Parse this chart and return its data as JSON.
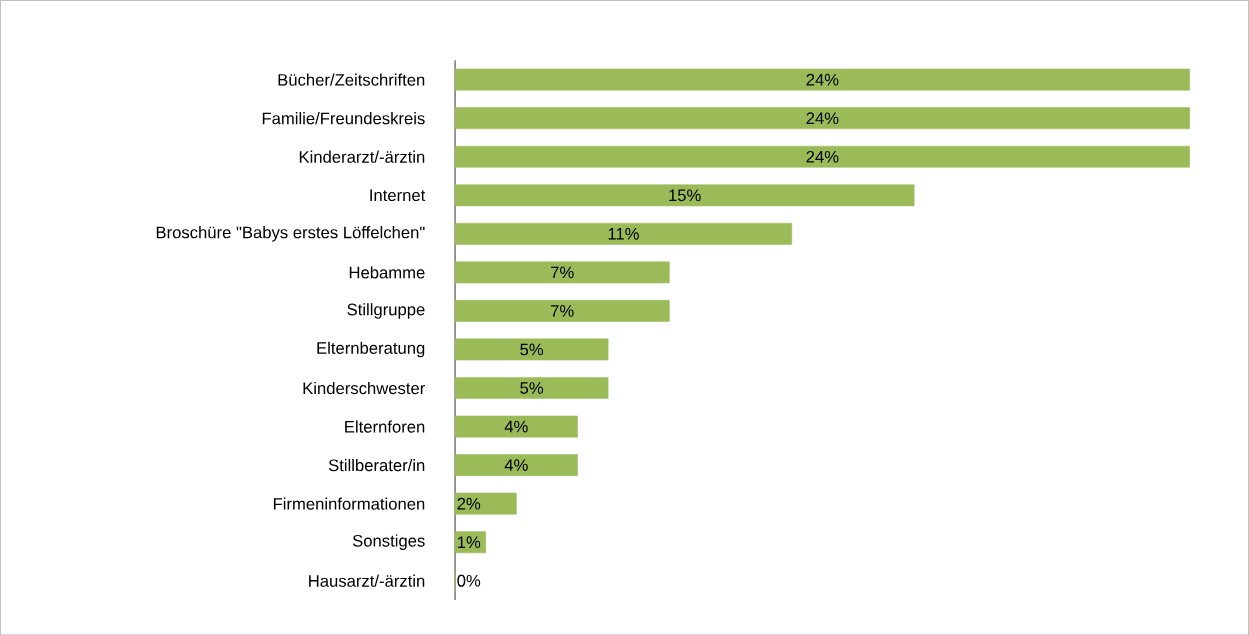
{
  "chart_data": {
    "type": "bar",
    "orientation": "horizontal",
    "color": "#9bbb59",
    "categories": [
      "Bücher/Zeitschriften",
      "Familie/Freundeskreis",
      "Kinderarzt/-ärztin",
      "Internet",
      "Broschüre \"Babys erstes Löffelchen\"",
      "Hebamme",
      "Stillgruppe",
      "Elternberatung",
      "Kinderschwester",
      "Elternforen",
      "Stillberater/in",
      "Firmeninformationen",
      "Sonstiges",
      "Hausarzt/-ärztin"
    ],
    "values": [
      24,
      24,
      24,
      15,
      11,
      7,
      7,
      5,
      5,
      4,
      4,
      2,
      1,
      0
    ],
    "value_labels": [
      "24%",
      "24%",
      "24%",
      "15%",
      "11%",
      "7%",
      "7%",
      "5%",
      "5%",
      "4%",
      "4%",
      "2%",
      "1%",
      "0%"
    ]
  }
}
